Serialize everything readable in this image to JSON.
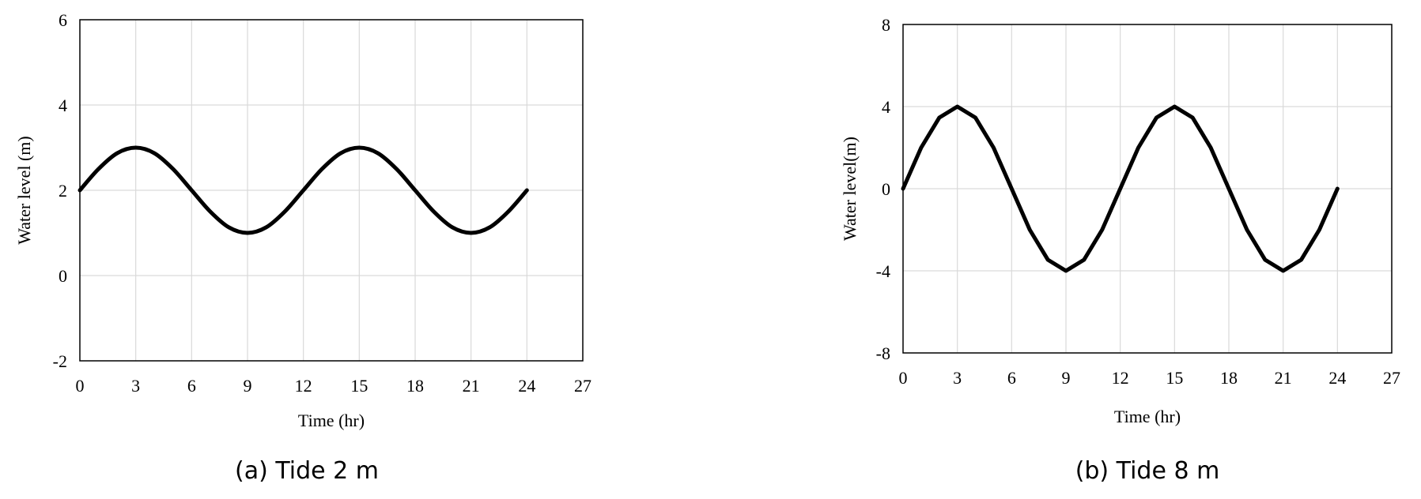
{
  "chart_data": [
    {
      "type": "line",
      "caption": "(a)  Tide  2 m",
      "xlabel": "Time (hr)",
      "ylabel": "Water level (m)",
      "xlim": [
        0,
        27
      ],
      "ylim": [
        -2,
        6
      ],
      "xticks": [
        0,
        3,
        6,
        9,
        12,
        15,
        18,
        21,
        24,
        27
      ],
      "yticks": [
        -2,
        0,
        2,
        4,
        6
      ],
      "grid": true,
      "series": [
        {
          "x": [
            0,
            1,
            2,
            3,
            4,
            5,
            6,
            7,
            8,
            9,
            10,
            11,
            12,
            13,
            14,
            15,
            16,
            17,
            18,
            19,
            20,
            21,
            22,
            23,
            24
          ],
          "y": [
            2,
            2.5,
            2.87,
            3,
            2.87,
            2.5,
            2,
            1.5,
            1.13,
            1,
            1.13,
            1.5,
            2,
            2.5,
            2.87,
            3,
            2.87,
            2.5,
            2,
            1.5,
            1.13,
            1,
            1.13,
            1.5,
            2
          ]
        }
      ]
    },
    {
      "type": "line",
      "caption": "(b)  Tide  8 m",
      "xlabel": "Time (hr)",
      "ylabel": "Water level(m)",
      "xlim": [
        0,
        27
      ],
      "ylim": [
        -8,
        8
      ],
      "xticks": [
        0,
        3,
        6,
        9,
        12,
        15,
        18,
        21,
        24,
        27
      ],
      "yticks": [
        -8,
        -4,
        0,
        4,
        8
      ],
      "grid": true,
      "series": [
        {
          "x": [
            0,
            1,
            2,
            3,
            4,
            5,
            6,
            7,
            8,
            9,
            10,
            11,
            12,
            13,
            14,
            15,
            16,
            17,
            18,
            19,
            20,
            21,
            22,
            23,
            24
          ],
          "y": [
            0,
            2,
            3.46,
            4,
            3.46,
            2,
            0,
            -2,
            -3.46,
            -4,
            -3.46,
            -2,
            0,
            2,
            3.46,
            4,
            3.46,
            2,
            0,
            -2,
            -3.46,
            -4,
            -3.46,
            -2,
            0
          ]
        }
      ]
    }
  ]
}
